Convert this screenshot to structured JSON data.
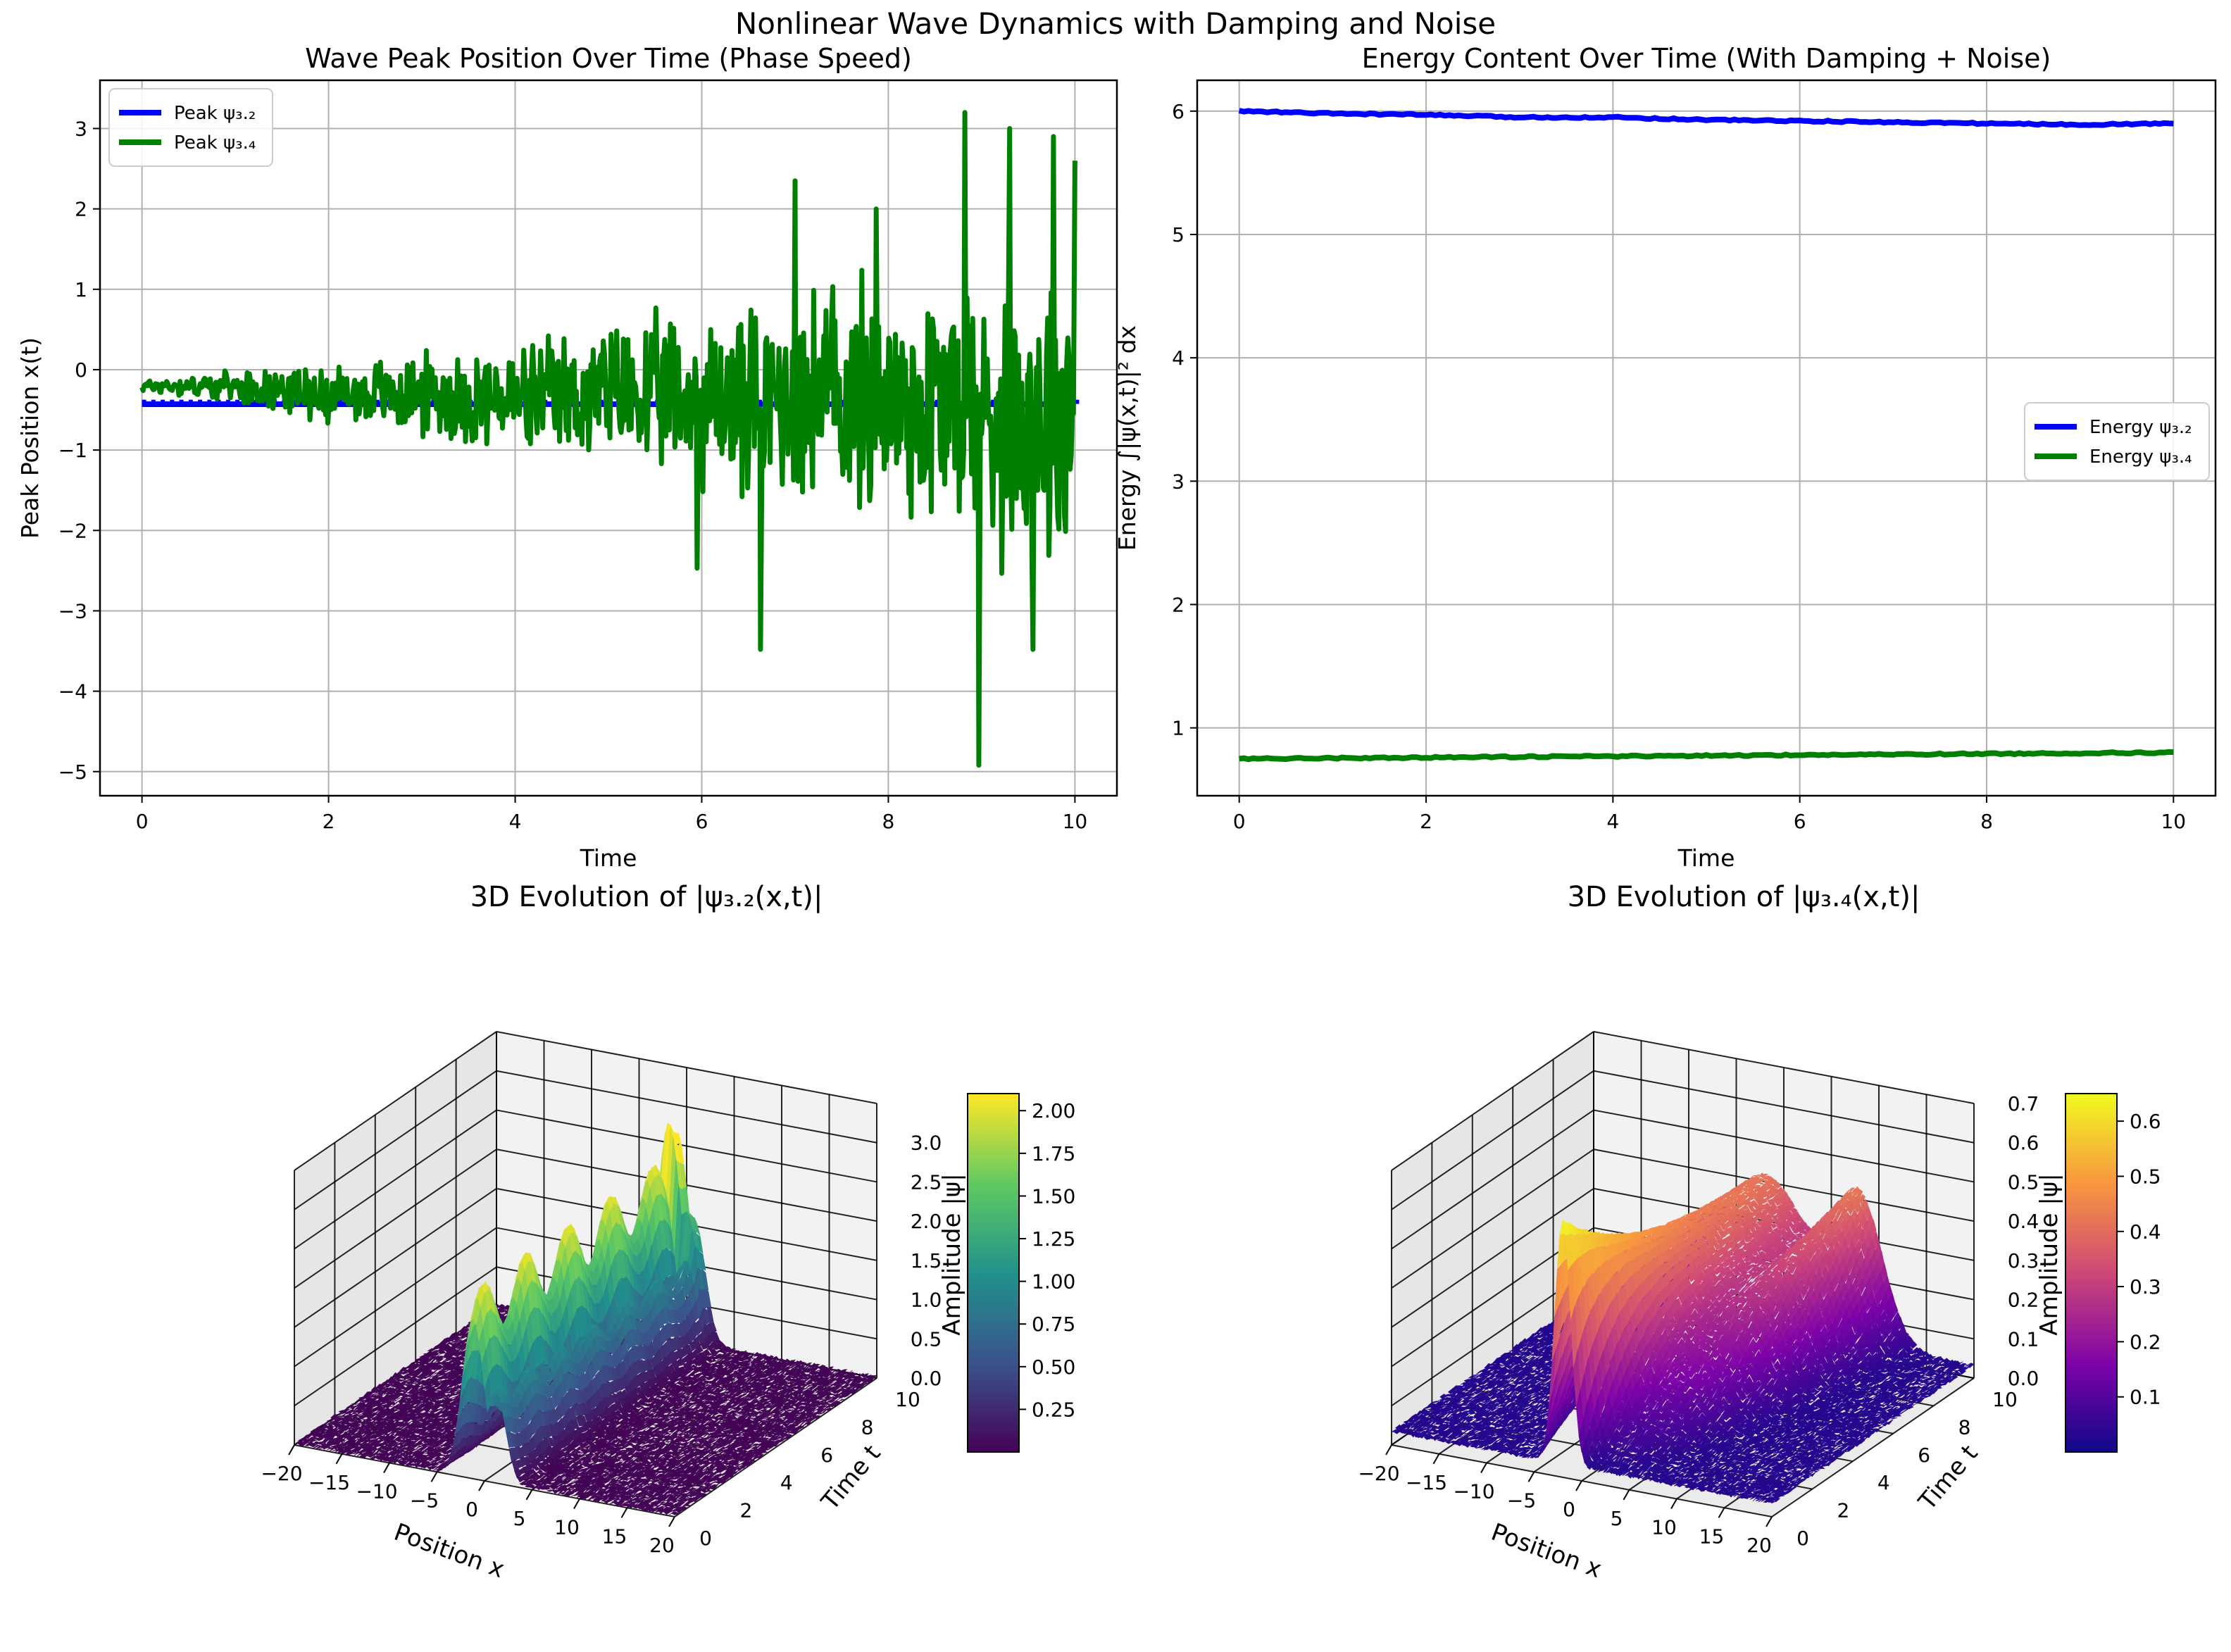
{
  "figure": {
    "suptitle": "Nonlinear Wave Dynamics with Damping and Noise"
  },
  "colors": {
    "blue": "#0000ff",
    "green": "#008000",
    "grid": "#b0b0b0"
  },
  "chart_data": [
    {
      "type": "line",
      "title": "Wave Peak Position Over Time (Phase Speed)",
      "xlabel": "Time",
      "ylabel": "Peak Position x(t)",
      "xlim": [
        -0.45,
        10.45
      ],
      "ylim": [
        -5.3,
        3.6
      ],
      "xticks": [
        "0",
        "2",
        "4",
        "6",
        "8",
        "10"
      ],
      "yticks": [
        "−5",
        "−4",
        "−3",
        "−2",
        "−1",
        "0",
        "1",
        "2",
        "3"
      ],
      "grid": true,
      "legend": "top-left",
      "series": [
        {
          "name": "Peak ψ₃.₂",
          "color": "#0000ff",
          "kind": "flat",
          "value": -0.43,
          "range": [
            0,
            10
          ]
        },
        {
          "name": "Peak ψ₃.₄",
          "color": "#008000",
          "kind": "noisy",
          "points": [
            [
              0,
              -0.2
            ],
            [
              1,
              -0.2
            ],
            [
              2,
              -0.3
            ],
            [
              3,
              -0.3
            ],
            [
              4,
              -0.4
            ],
            [
              5,
              -0.3
            ],
            [
              6,
              -0.4
            ],
            [
              7,
              -0.3
            ],
            [
              8,
              -0.4
            ],
            [
              9,
              -0.5
            ],
            [
              10,
              -0.5
            ]
          ],
          "amplitude": [
            [
              0,
              0.1
            ],
            [
              1,
              0.2
            ],
            [
              2,
              0.4
            ],
            [
              3,
              0.6
            ],
            [
              4,
              0.8
            ],
            [
              5,
              1.0
            ],
            [
              6,
              1.3
            ],
            [
              7,
              1.6
            ],
            [
              8,
              1.8
            ],
            [
              9,
              2.2
            ],
            [
              10,
              2.3
            ]
          ],
          "spikes": [
            [
              6.63,
              -3.48
            ],
            [
              8.82,
              3.2
            ],
            [
              8.97,
              -4.92
            ],
            [
              9.3,
              3.0
            ],
            [
              9.55,
              -3.48
            ],
            [
              9.77,
              2.9
            ],
            [
              10,
              2.6
            ],
            [
              7.0,
              2.35
            ],
            [
              5.95,
              -2.47
            ],
            [
              7.87,
              2.0
            ]
          ]
        }
      ]
    },
    {
      "type": "line",
      "title": "Energy Content Over Time (With Damping + Noise)",
      "xlabel": "Time",
      "ylabel": "Energy ∫|ψ(x,t)|² dx",
      "xlim": [
        -0.45,
        10.45
      ],
      "ylim": [
        0.45,
        6.25
      ],
      "xticks": [
        "0",
        "2",
        "4",
        "6",
        "8",
        "10"
      ],
      "yticks": [
        "1",
        "2",
        "3",
        "4",
        "5",
        "6"
      ],
      "grid": true,
      "legend": "center-right",
      "series": [
        {
          "name": "Energy ψ₃.₂",
          "color": "#0000ff",
          "points": [
            [
              0,
              6.0
            ],
            [
              1,
              5.98
            ],
            [
              2,
              5.97
            ],
            [
              3,
              5.95
            ],
            [
              4,
              5.95
            ],
            [
              5,
              5.93
            ],
            [
              6,
              5.92
            ],
            [
              7,
              5.91
            ],
            [
              8,
              5.9
            ],
            [
              9,
              5.89
            ],
            [
              10,
              5.9
            ]
          ]
        },
        {
          "name": "Energy ψ₃.₄",
          "color": "#008000",
          "points": [
            [
              0,
              0.75
            ],
            [
              2,
              0.76
            ],
            [
              4,
              0.77
            ],
            [
              6,
              0.78
            ],
            [
              8,
              0.79
            ],
            [
              10,
              0.8
            ]
          ]
        }
      ]
    },
    {
      "type": "surface3d",
      "title": "3D Evolution of |ψ₃.₂(x,t)|",
      "xlabel": "Position x",
      "ylabel": "Time t",
      "zlabel": "Amplitude |ψ|",
      "xticks": [
        "−20",
        "−15",
        "−10",
        "−5",
        "0",
        "5",
        "10",
        "15",
        "20"
      ],
      "yticks": [
        "0",
        "2",
        "4",
        "6",
        "8",
        "10"
      ],
      "zticks": [
        "0.0",
        "0.5",
        "1.0",
        "1.5",
        "2.0",
        "2.5",
        "3.0"
      ],
      "colormap": "viridis",
      "colorbar_ticks": [
        "0.25",
        "0.50",
        "0.75",
        "1.00",
        "1.25",
        "1.50",
        "1.75",
        "2.00"
      ],
      "colorbar_range": [
        0.0,
        2.1
      ],
      "peak_amplitude": 3.0
    },
    {
      "type": "surface3d",
      "title": "3D Evolution of |ψ₃.₄(x,t)|",
      "xlabel": "Position x",
      "ylabel": "Time t",
      "zlabel": "Amplitude |ψ|",
      "xticks": [
        "−20",
        "−15",
        "−10",
        "−5",
        "0",
        "5",
        "10",
        "15",
        "20"
      ],
      "yticks": [
        "0",
        "2",
        "4",
        "6",
        "8",
        "10"
      ],
      "zticks": [
        "0.0",
        "0.1",
        "0.2",
        "0.3",
        "0.4",
        "0.5",
        "0.6",
        "0.7"
      ],
      "colormap": "plasma",
      "colorbar_ticks": [
        "0.1",
        "0.2",
        "0.3",
        "0.4",
        "0.5",
        "0.6"
      ],
      "colorbar_range": [
        0.0,
        0.65
      ],
      "peak_amplitude": 0.6
    }
  ]
}
